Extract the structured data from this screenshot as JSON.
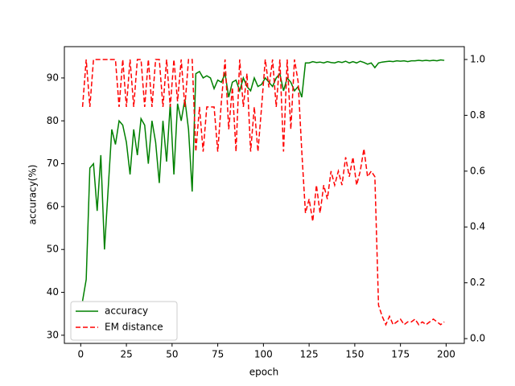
{
  "chart_data": {
    "type": "line",
    "xlabel": "epoch",
    "ylabel": "accuracy(%)",
    "x": [
      1,
      3,
      5,
      7,
      9,
      11,
      13,
      15,
      17,
      19,
      21,
      23,
      25,
      27,
      29,
      31,
      33,
      35,
      37,
      39,
      41,
      43,
      45,
      47,
      49,
      51,
      53,
      55,
      57,
      59,
      61,
      63,
      65,
      67,
      69,
      71,
      73,
      75,
      77,
      79,
      81,
      83,
      85,
      87,
      89,
      91,
      93,
      95,
      97,
      99,
      101,
      103,
      105,
      107,
      109,
      111,
      113,
      115,
      117,
      119,
      121,
      123,
      125,
      127,
      129,
      131,
      133,
      135,
      137,
      139,
      141,
      143,
      145,
      147,
      149,
      151,
      153,
      155,
      157,
      159,
      161,
      163,
      165,
      167,
      169,
      171,
      173,
      175,
      177,
      179,
      181,
      183,
      185,
      187,
      189,
      191,
      193,
      195,
      197,
      199
    ],
    "series": [
      {
        "name": "accuracy",
        "color": "#008000",
        "axis": "y",
        "dash": false,
        "values": [
          38,
          43,
          69,
          70,
          59,
          72,
          50,
          64,
          78,
          74.5,
          80,
          79,
          75,
          67.5,
          78,
          72,
          80.5,
          79,
          70,
          80,
          75,
          65.5,
          80,
          70.5,
          84,
          67.5,
          84,
          80,
          85,
          78,
          63.5,
          91,
          91.5,
          90,
          90.5,
          90,
          87.5,
          89.5,
          89,
          91,
          85.5,
          89,
          89.5,
          87,
          90,
          88,
          87,
          90,
          88,
          88.5,
          90,
          89,
          88,
          90,
          91,
          87,
          90,
          89,
          87,
          88,
          85.5,
          93.5,
          93.5,
          93.8,
          93.6,
          93.7,
          93.5,
          93.8,
          93.6,
          93.5,
          93.8,
          93.6,
          93.9,
          93.5,
          93.8,
          93.5,
          93.9,
          93.6,
          93.2,
          93.5,
          92.4,
          93.5,
          93.7,
          93.8,
          93.9,
          93.8,
          94,
          93.9,
          94,
          93.8,
          94,
          94,
          94.1,
          94,
          94.1,
          94,
          94.1,
          94,
          94.2,
          94.1
        ]
      },
      {
        "name": "EM distance",
        "color": "#ff0000",
        "axis": "y2",
        "dash": true,
        "values": [
          0.83,
          1.0,
          0.83,
          1.0,
          1.0,
          1.0,
          1.0,
          1.0,
          1.0,
          1.0,
          0.83,
          1.0,
          0.83,
          1.0,
          0.83,
          1.0,
          1.0,
          0.83,
          1.0,
          0.83,
          1.0,
          1.0,
          0.83,
          1.0,
          0.83,
          1.0,
          0.85,
          1.0,
          0.83,
          1.0,
          1.0,
          0.67,
          0.83,
          0.67,
          0.83,
          0.83,
          0.83,
          0.67,
          0.85,
          1.0,
          0.75,
          0.9,
          0.67,
          1.0,
          0.83,
          0.95,
          0.67,
          0.83,
          0.67,
          0.83,
          1.0,
          0.9,
          1.0,
          0.83,
          1.0,
          0.67,
          1.0,
          0.75,
          1.0,
          0.92,
          0.67,
          0.45,
          0.5,
          0.42,
          0.55,
          0.45,
          0.55,
          0.5,
          0.6,
          0.55,
          0.6,
          0.55,
          0.65,
          0.58,
          0.65,
          0.55,
          0.6,
          0.68,
          0.58,
          0.6,
          0.58,
          0.12,
          0.08,
          0.05,
          0.08,
          0.05,
          0.06,
          0.07,
          0.05,
          0.06,
          0.06,
          0.07,
          0.05,
          0.06,
          0.05,
          0.06,
          0.07,
          0.06,
          0.05,
          0.06
        ]
      }
    ],
    "xlim": [
      -8.95,
      209.95
    ],
    "xticks": [
      0,
      25,
      50,
      75,
      100,
      125,
      150,
      175,
      200
    ],
    "ylim": [
      28.1,
      97.3
    ],
    "yticks": [
      30,
      40,
      50,
      60,
      70,
      80,
      90
    ],
    "y2lim": [
      -0.017,
      1.046
    ],
    "y2ticks": [
      {
        "value": 0,
        "label": "0.0"
      },
      0.2,
      0.4,
      0.6,
      0.8,
      {
        "value": 1,
        "label": "1.0"
      }
    ],
    "legend": "lower left"
  }
}
